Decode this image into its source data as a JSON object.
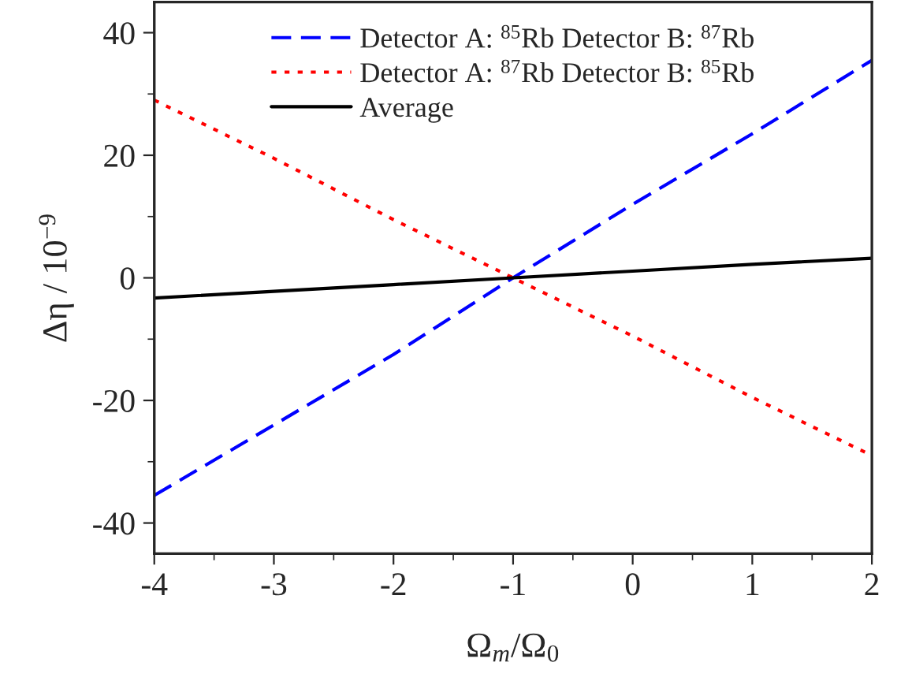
{
  "chart_data": {
    "type": "line",
    "xlabel": "Ω$_{m}$/Ω$_{0}$",
    "ylabel": "Δη / 10$^{−9}$",
    "x": [
      -4,
      -3,
      -2,
      -1,
      0,
      1,
      2
    ],
    "series": [
      {
        "name": "Detector A: $^{85}$Rb Detector B: $^{87}$Rb",
        "color": "#0000ff",
        "line_style": "dashed",
        "values": [
          -35.5,
          -24,
          -12.5,
          0,
          12,
          23.5,
          35.5
        ]
      },
      {
        "name": "Detector A: $^{87}$Rb Detector B: $^{85}$Rb",
        "color": "#ff0000",
        "line_style": "dotted",
        "values": [
          29,
          19.5,
          9.5,
          0,
          -9.5,
          -19.5,
          -29
        ]
      },
      {
        "name": "Average",
        "color": "#000000",
        "line_style": "solid",
        "values": [
          -3.3,
          -2.2,
          -1.1,
          0,
          1.1,
          2.2,
          3.2
        ]
      }
    ],
    "xlim": [
      -4,
      2
    ],
    "xticks": [
      -4,
      -3,
      -2,
      -1,
      0,
      1,
      2
    ],
    "ylim": [
      -45,
      45
    ],
    "yticks": [
      -40,
      -20,
      0,
      20,
      40
    ],
    "grid": false,
    "legend": "top",
    "marker": "none"
  }
}
